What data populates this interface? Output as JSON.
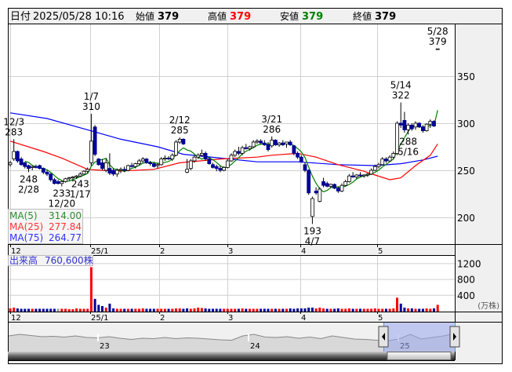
{
  "header": {
    "date_label": "日付",
    "date_value": "2025/05/28 10:16",
    "open_label": "始値",
    "open_value": "379",
    "high_label": "高値",
    "high_value": "379",
    "low_label": "安値",
    "low_value": "379",
    "close_label": "終値",
    "close_value": "379"
  },
  "colors": {
    "up_volume": "#ff0000",
    "down_volume": "#000099",
    "flat_volume": "#999999",
    "ma5": "#008000",
    "ma25": "#ff0000",
    "ma75": "#0000ff",
    "candle_down": "#000099",
    "candle_up": "#ffffff",
    "high_value": "#ff0000",
    "low_value": "#008000"
  },
  "legend": [
    {
      "name": "MA(5)",
      "value": "314.00",
      "color": "#2e8b2e"
    },
    {
      "name": "MA(25)",
      "value": "277.84",
      "color": "#ff3333"
    },
    {
      "name": "MA(75)",
      "value": "264.77",
      "color": "#3333ff"
    }
  ],
  "volume_panel": {
    "label": "出来高",
    "value": "760,600株",
    "unit": "(万株)"
  },
  "chart_data": {
    "type": "candlestick",
    "price_axis": {
      "ticks": [
        200,
        250,
        300,
        350
      ]
    },
    "volume_axis": {
      "ticks": [
        400,
        800,
        1200
      ],
      "unit": "万株"
    },
    "month_labels": [
      "12",
      "25/1",
      "2",
      "3",
      "4",
      "5"
    ],
    "navigator_labels": [
      "23",
      "24",
      "25"
    ],
    "dates": [
      "2024-12-02",
      "2024-12-03",
      "2024-12-04",
      "2024-12-05",
      "2024-12-06",
      "2024-12-09",
      "2024-12-10",
      "2024-12-11",
      "2024-12-12",
      "2024-12-13",
      "2024-12-16",
      "2024-12-17",
      "2024-12-18",
      "2024-12-19",
      "2024-12-20",
      "2024-12-23",
      "2024-12-24",
      "2024-12-25",
      "2024-12-26",
      "2024-12-27",
      "2024-12-30",
      "2025-01-06",
      "2025-01-07",
      "2025-01-08",
      "2025-01-09",
      "2025-01-10",
      "2025-01-14",
      "2025-01-15",
      "2025-01-16",
      "2025-01-17",
      "2025-01-20",
      "2025-01-21",
      "2025-01-22",
      "2025-01-23",
      "2025-01-24",
      "2025-01-27",
      "2025-01-28",
      "2025-01-29",
      "2025-01-30",
      "2025-01-31",
      "2025-02-03",
      "2025-02-04",
      "2025-02-05",
      "2025-02-06",
      "2025-02-07",
      "2025-02-10",
      "2025-02-12",
      "2025-02-13",
      "2025-02-14",
      "2025-02-17",
      "2025-02-18",
      "2025-02-19",
      "2025-02-20",
      "2025-02-21",
      "2025-02-25",
      "2025-02-26",
      "2025-02-27",
      "2025-02-28",
      "2025-03-03",
      "2025-03-04",
      "2025-03-05",
      "2025-03-06",
      "2025-03-07",
      "2025-03-10",
      "2025-03-11",
      "2025-03-12",
      "2025-03-13",
      "2025-03-14",
      "2025-03-17",
      "2025-03-18",
      "2025-03-19",
      "2025-03-21",
      "2025-03-24",
      "2025-03-25",
      "2025-03-26",
      "2025-03-27",
      "2025-03-28",
      "2025-03-31",
      "2025-04-01",
      "2025-04-02",
      "2025-04-03",
      "2025-04-04",
      "2025-04-07",
      "2025-04-08",
      "2025-04-09",
      "2025-04-10",
      "2025-04-11",
      "2025-04-14",
      "2025-04-15",
      "2025-04-16",
      "2025-04-17",
      "2025-04-18",
      "2025-04-21",
      "2025-04-22",
      "2025-04-23",
      "2025-04-24",
      "2025-04-25",
      "2025-04-28",
      "2025-04-30",
      "2025-05-01",
      "2025-05-02",
      "2025-05-07",
      "2025-05-08",
      "2025-05-09",
      "2025-05-12",
      "2025-05-13",
      "2025-05-14",
      "2025-05-15",
      "2025-05-16",
      "2025-05-19",
      "2025-05-20",
      "2025-05-21",
      "2025-05-22",
      "2025-05-23",
      "2025-05-26",
      "2025-05-27",
      "2025-05-28"
    ],
    "ohlc": [
      [
        256,
        260,
        254,
        258
      ],
      [
        262,
        283,
        260,
        270
      ],
      [
        270,
        271,
        258,
        260
      ],
      [
        262,
        264,
        255,
        256
      ],
      [
        258,
        259,
        252,
        254
      ],
      [
        255,
        256,
        248,
        252
      ],
      [
        253,
        255,
        250,
        254
      ],
      [
        254,
        256,
        252,
        253
      ],
      [
        255,
        256,
        251,
        252
      ],
      [
        252,
        253,
        246,
        248
      ],
      [
        248,
        250,
        244,
        246
      ],
      [
        246,
        247,
        238,
        240
      ],
      [
        240,
        242,
        235,
        236
      ],
      [
        238,
        240,
        235,
        236
      ],
      [
        236,
        239,
        233,
        238
      ],
      [
        238,
        242,
        237,
        241
      ],
      [
        241,
        243,
        239,
        242
      ],
      [
        242,
        244,
        240,
        243
      ],
      [
        243,
        245,
        241,
        244
      ],
      [
        244,
        248,
        243,
        246
      ],
      [
        246,
        250,
        245,
        249
      ],
      [
        249,
        253,
        247,
        251
      ],
      [
        258,
        310,
        255,
        281
      ],
      [
        296,
        298,
        265,
        267
      ],
      [
        262,
        263,
        255,
        256
      ],
      [
        258,
        262,
        250,
        252
      ],
      [
        250,
        262,
        248,
        258
      ],
      [
        252,
        268,
        245,
        247
      ],
      [
        250,
        252,
        244,
        246
      ],
      [
        246,
        252,
        243,
        250
      ],
      [
        250,
        253,
        247,
        251
      ],
      [
        251,
        254,
        248,
        250
      ],
      [
        250,
        256,
        249,
        255
      ],
      [
        255,
        258,
        253,
        254
      ],
      [
        254,
        258,
        252,
        257
      ],
      [
        257,
        262,
        255,
        260
      ],
      [
        260,
        264,
        258,
        262
      ],
      [
        262,
        263,
        257,
        258
      ],
      [
        258,
        260,
        255,
        257
      ],
      [
        257,
        259,
        253,
        254
      ],
      [
        255,
        258,
        252,
        256
      ],
      [
        256,
        264,
        255,
        262
      ],
      [
        262,
        266,
        260,
        263
      ],
      [
        263,
        265,
        261,
        262
      ],
      [
        262,
        268,
        260,
        266
      ],
      [
        266,
        282,
        265,
        280
      ],
      [
        280,
        285,
        278,
        283
      ],
      [
        283,
        284,
        277,
        278
      ],
      [
        248,
        262,
        247,
        251
      ],
      [
        252,
        262,
        250,
        260
      ],
      [
        260,
        266,
        258,
        264
      ],
      [
        264,
        268,
        262,
        266
      ],
      [
        266,
        272,
        264,
        268
      ],
      [
        268,
        270,
        260,
        262
      ],
      [
        262,
        264,
        256,
        257
      ],
      [
        256,
        258,
        252,
        253
      ],
      [
        254,
        256,
        249,
        252
      ],
      [
        252,
        255,
        248,
        250
      ],
      [
        250,
        254,
        249,
        253
      ],
      [
        253,
        262,
        252,
        260
      ],
      [
        260,
        268,
        259,
        266
      ],
      [
        266,
        272,
        264,
        270
      ],
      [
        270,
        275,
        266,
        268
      ],
      [
        268,
        276,
        266,
        274
      ],
      [
        274,
        278,
        272,
        273
      ],
      [
        273,
        276,
        271,
        275
      ],
      [
        275,
        282,
        274,
        280
      ],
      [
        280,
        283,
        278,
        281
      ],
      [
        281,
        283,
        278,
        279
      ],
      [
        279,
        282,
        276,
        277
      ],
      [
        277,
        280,
        270,
        272
      ],
      [
        276,
        286,
        274,
        282
      ],
      [
        282,
        283,
        276,
        277
      ],
      [
        277,
        280,
        275,
        279
      ],
      [
        279,
        282,
        276,
        277
      ],
      [
        278,
        280,
        274,
        280
      ],
      [
        280,
        282,
        276,
        277
      ],
      [
        276,
        277,
        266,
        268
      ],
      [
        268,
        270,
        262,
        264
      ],
      [
        264,
        266,
        258,
        259
      ],
      [
        256,
        258,
        248,
        250
      ],
      [
        250,
        251,
        224,
        226
      ],
      [
        201,
        222,
        193,
        220
      ],
      [
        228,
        232,
        224,
        226
      ],
      [
        217,
        232,
        216,
        230
      ],
      [
        238,
        242,
        232,
        234
      ],
      [
        236,
        238,
        232,
        233
      ],
      [
        233,
        236,
        231,
        235
      ],
      [
        235,
        236,
        230,
        231
      ],
      [
        231,
        233,
        226,
        228
      ],
      [
        228,
        236,
        227,
        234
      ],
      [
        234,
        240,
        233,
        238
      ],
      [
        238,
        246,
        237,
        244
      ],
      [
        244,
        248,
        242,
        243
      ],
      [
        243,
        246,
        241,
        245
      ],
      [
        245,
        248,
        243,
        244
      ],
      [
        244,
        246,
        242,
        245
      ],
      [
        245,
        247,
        243,
        246
      ],
      [
        246,
        252,
        245,
        250
      ],
      [
        250,
        256,
        249,
        254
      ],
      [
        254,
        258,
        252,
        256
      ],
      [
        256,
        264,
        255,
        262
      ],
      [
        262,
        264,
        258,
        260
      ],
      [
        260,
        266,
        259,
        264
      ],
      [
        264,
        270,
        262,
        268
      ],
      [
        268,
        302,
        266,
        300
      ],
      [
        300,
        322,
        295,
        298
      ],
      [
        303,
        312,
        290,
        293
      ],
      [
        293,
        300,
        288,
        298
      ],
      [
        298,
        300,
        292,
        294
      ],
      [
        296,
        302,
        293,
        300
      ],
      [
        300,
        301,
        295,
        296
      ],
      [
        296,
        298,
        290,
        292
      ],
      [
        292,
        300,
        291,
        299
      ],
      [
        299,
        304,
        295,
        302
      ],
      [
        302,
        303,
        296,
        297
      ],
      [
        379,
        379,
        379,
        379
      ]
    ],
    "volume": [
      60,
      80,
      60,
      50,
      50,
      50,
      50,
      50,
      50,
      50,
      50,
      50,
      50,
      50,
      50,
      50,
      40,
      40,
      60,
      50,
      50,
      50,
      1100,
      300,
      150,
      120,
      80,
      180,
      60,
      50,
      50,
      50,
      50,
      50,
      50,
      50,
      60,
      50,
      50,
      50,
      50,
      50,
      50,
      50,
      50,
      60,
      60,
      50,
      60,
      50,
      60,
      80,
      70,
      60,
      50,
      50,
      50,
      50,
      50,
      50,
      50,
      50,
      50,
      60,
      50,
      50,
      50,
      50,
      50,
      50,
      50,
      50,
      50,
      50,
      50,
      50,
      60,
      50,
      60,
      60,
      60,
      80,
      80,
      60,
      80,
      60,
      50,
      50,
      50,
      60,
      50,
      50,
      60,
      50,
      50,
      50,
      50,
      50,
      50,
      60,
      50,
      50,
      50,
      50,
      60,
      330,
      180,
      80,
      60,
      60,
      50,
      50,
      50,
      60,
      50,
      60,
      150
    ],
    "ma25": [
      [
        "2024-12-02",
        281
      ],
      [
        "2024-12-13",
        270
      ],
      [
        "2024-12-20",
        263
      ],
      [
        "2025-01-06",
        251
      ],
      [
        "2025-01-17",
        249
      ],
      [
        "2025-01-31",
        251
      ],
      [
        "2025-02-12",
        258
      ],
      [
        "2025-02-28",
        262
      ],
      [
        "2025-03-14",
        264
      ],
      [
        "2025-03-21",
        266
      ],
      [
        "2025-04-01",
        268
      ],
      [
        "2025-04-08",
        264
      ],
      [
        "2025-04-16",
        256
      ],
      [
        "2025-04-25",
        249
      ],
      [
        "2025-05-01",
        245
      ],
      [
        "2025-05-09",
        240
      ],
      [
        "2025-05-14",
        242
      ],
      [
        "2025-05-20",
        255
      ],
      [
        "2025-05-26",
        266
      ],
      [
        "2025-05-28",
        278
      ]
    ],
    "ma75": [
      [
        "2024-12-02",
        311
      ],
      [
        "2024-12-16",
        305
      ],
      [
        "2025-01-06",
        293
      ],
      [
        "2025-01-20",
        283
      ],
      [
        "2025-02-03",
        275
      ],
      [
        "2025-02-13",
        267
      ],
      [
        "2025-02-28",
        263
      ],
      [
        "2025-03-14",
        259
      ],
      [
        "2025-04-01",
        259
      ],
      [
        "2025-04-16",
        256
      ],
      [
        "2025-05-01",
        255
      ],
      [
        "2025-05-14",
        257
      ],
      [
        "2025-05-22",
        261
      ],
      [
        "2025-05-28",
        265
      ]
    ],
    "annotations": [
      {
        "date": "12/3",
        "value": 283,
        "placement": "above"
      },
      {
        "date": "12/20",
        "value": 233,
        "placement": "below"
      },
      {
        "date": "1/7",
        "value": 310,
        "placement": "above"
      },
      {
        "date": "1/17",
        "value": 243,
        "placement": "below"
      },
      {
        "date": "2/12",
        "value": 285,
        "placement": "above"
      },
      {
        "date": "2/28",
        "value": 248,
        "placement": "below"
      },
      {
        "date": "3/21",
        "value": 286,
        "placement": "above"
      },
      {
        "date": "4/7",
        "value": 193,
        "placement": "below"
      },
      {
        "date": "5/14",
        "value": 322,
        "placement": "above"
      },
      {
        "date": "5/16",
        "value": 288,
        "placement": "below"
      },
      {
        "date": "5/28",
        "value": 379,
        "placement": "above"
      }
    ],
    "navigator": [
      258,
      262,
      259,
      256,
      257,
      255,
      258,
      254,
      253,
      256,
      252,
      249,
      252,
      251,
      254,
      251,
      253,
      252,
      250,
      248,
      247,
      258,
      262,
      255,
      254,
      256,
      252,
      255,
      251,
      258,
      254,
      250,
      249,
      247,
      246,
      250,
      262,
      250,
      254,
      258,
      264
    ]
  }
}
